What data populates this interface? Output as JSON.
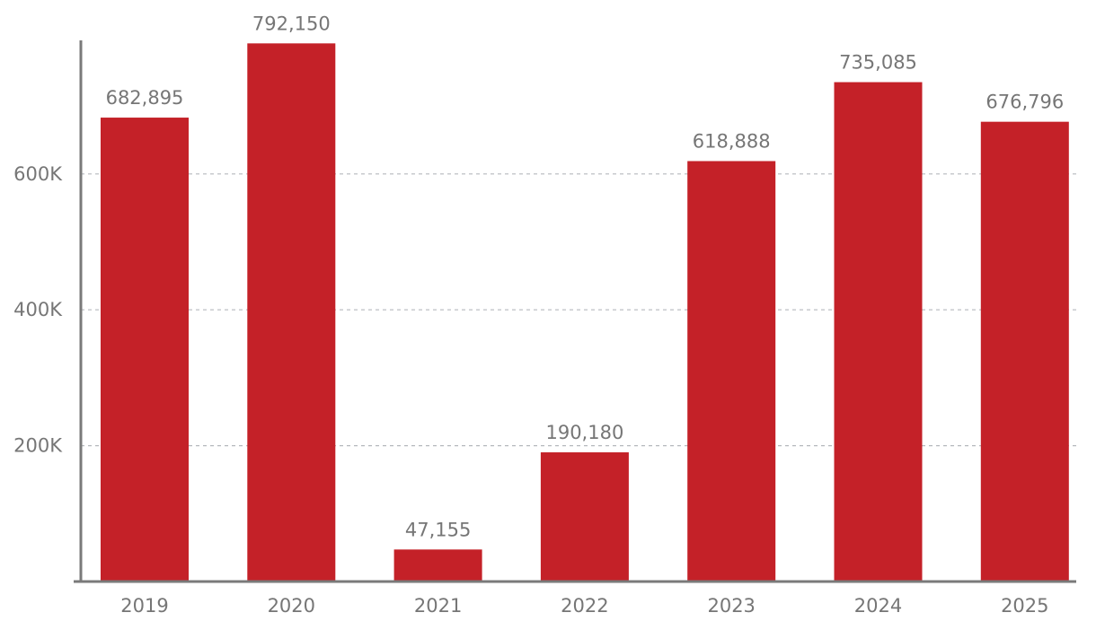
{
  "chart_data": {
    "type": "bar",
    "categories": [
      "2019",
      "2020",
      "2021",
      "2022",
      "2023",
      "2024",
      "2025"
    ],
    "series": [
      {
        "values": [
          682895,
          792150,
          47155,
          190180,
          618888,
          735085,
          676796
        ],
        "color": "#c42128"
      }
    ],
    "data_labels": [
      "682,895",
      "792,150",
      "47,155",
      "190,180",
      "618,888",
      "735,085",
      "676,796"
    ],
    "yaxis": {
      "ticks": [
        200000,
        400000,
        600000
      ],
      "tick_labels": [
        "200K",
        "400K",
        "600K"
      ],
      "ylim": [
        0,
        800000
      ]
    },
    "grid": {
      "y": true,
      "style": "dashed",
      "color": "#b5b8bd"
    },
    "axis_color": "#7a7a7a",
    "text_color": "#767676",
    "title": "",
    "xlabel": "",
    "ylabel": "",
    "legend": "none"
  }
}
